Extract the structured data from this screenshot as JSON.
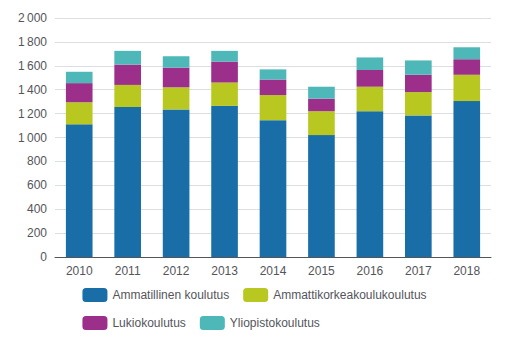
{
  "chart_data": {
    "type": "bar",
    "stacked": true,
    "categories": [
      "2010",
      "2011",
      "2012",
      "2013",
      "2014",
      "2015",
      "2016",
      "2017",
      "2018"
    ],
    "series": [
      {
        "name": "Ammatillinen koulutus",
        "color": "#1a6ea8",
        "values": [
          1110,
          1255,
          1235,
          1265,
          1145,
          1020,
          1220,
          1185,
          1305
        ]
      },
      {
        "name": "Ammattikorkeakoulukoulutus",
        "color": "#b8c820",
        "values": [
          185,
          185,
          185,
          195,
          210,
          200,
          205,
          195,
          220
        ]
      },
      {
        "name": "Lukiokoulutus",
        "color": "#9c2f8a",
        "values": [
          160,
          170,
          165,
          175,
          130,
          105,
          140,
          145,
          130
        ]
      },
      {
        "name": "Yliopistokoulutus",
        "color": "#4eb8b8",
        "values": [
          95,
          115,
          95,
          90,
          85,
          100,
          105,
          120,
          100
        ]
      }
    ],
    "ylim": [
      0,
      2000
    ],
    "yticks": [
      0,
      200,
      400,
      600,
      800,
      {
        "value": 1000,
        "label": "1 000"
      },
      {
        "value": 1200,
        "label": "1 200"
      },
      {
        "value": 1400,
        "label": "1 400"
      },
      {
        "value": 1600,
        "label": "1 600"
      },
      {
        "value": 1800,
        "label": "1 800"
      },
      {
        "value": 2000,
        "label": "2 000"
      }
    ],
    "grid": true,
    "legend": "bottom"
  }
}
